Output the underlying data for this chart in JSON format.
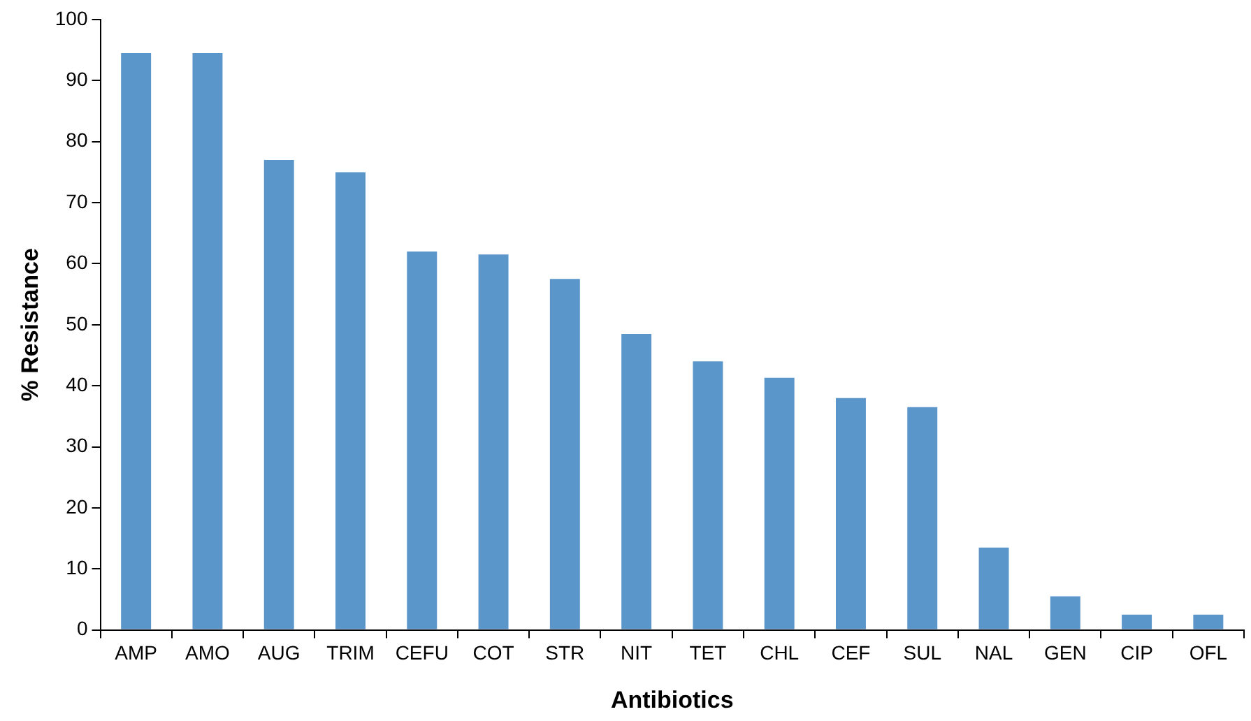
{
  "chart_data": {
    "type": "bar",
    "xlabel": "Antibiotics",
    "ylabel": "% Resistance",
    "categories": [
      "AMP",
      "AMO",
      "AUG",
      "TRIM",
      "CEFU",
      "COT",
      "STR",
      "NIT",
      "TET",
      "CHL",
      "CEF",
      "SUL",
      "NAL",
      "GEN",
      "CIP",
      "OFL"
    ],
    "values": [
      94.5,
      94.5,
      77,
      75,
      62,
      61.5,
      57.5,
      48.5,
      44,
      41.3,
      38,
      36.5,
      13.5,
      5.5,
      2.5,
      2.5
    ],
    "color": "#5b96cb",
    "ylim": [
      0,
      100
    ],
    "yticks": [
      0,
      10,
      20,
      30,
      40,
      50,
      60,
      70,
      80,
      90,
      100
    ],
    "grid": false,
    "legend": false
  }
}
